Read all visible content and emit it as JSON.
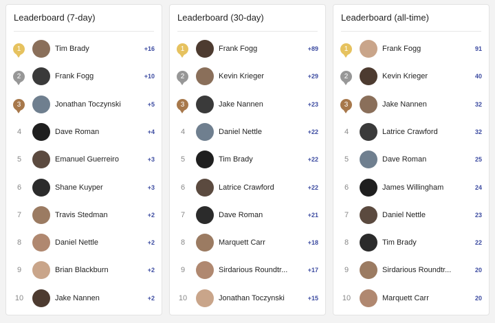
{
  "panels": [
    {
      "title": "Leaderboard (7-day)",
      "rows": [
        {
          "rank": 1,
          "name": "Tim Brady",
          "score": "+16"
        },
        {
          "rank": 2,
          "name": "Frank Fogg",
          "score": "+10"
        },
        {
          "rank": 3,
          "name": "Jonathan Toczynski",
          "score": "+5"
        },
        {
          "rank": 4,
          "name": "Dave Roman",
          "score": "+4"
        },
        {
          "rank": 5,
          "name": "Emanuel Guerreiro",
          "score": "+3"
        },
        {
          "rank": 6,
          "name": "Shane Kuyper",
          "score": "+3"
        },
        {
          "rank": 7,
          "name": "Travis Stedman",
          "score": "+2"
        },
        {
          "rank": 8,
          "name": "Daniel Nettle",
          "score": "+2"
        },
        {
          "rank": 9,
          "name": "Brian Blackburn",
          "score": "+2"
        },
        {
          "rank": 10,
          "name": "Jake Nannen",
          "score": "+2"
        }
      ]
    },
    {
      "title": "Leaderboard (30-day)",
      "rows": [
        {
          "rank": 1,
          "name": "Frank Fogg",
          "score": "+89"
        },
        {
          "rank": 2,
          "name": "Kevin Krieger",
          "score": "+29"
        },
        {
          "rank": 3,
          "name": "Jake Nannen",
          "score": "+23"
        },
        {
          "rank": 4,
          "name": "Daniel Nettle",
          "score": "+22"
        },
        {
          "rank": 5,
          "name": "Tim Brady",
          "score": "+22"
        },
        {
          "rank": 6,
          "name": "Latrice Crawford",
          "score": "+22"
        },
        {
          "rank": 7,
          "name": "Dave Roman",
          "score": "+21"
        },
        {
          "rank": 8,
          "name": "Marquett Carr",
          "score": "+18"
        },
        {
          "rank": 9,
          "name": "Sirdarious Roundtr...",
          "score": "+17"
        },
        {
          "rank": 10,
          "name": "Jonathan Toczynski",
          "score": "+15"
        }
      ]
    },
    {
      "title": "Leaderboard (all-time)",
      "rows": [
        {
          "rank": 1,
          "name": "Frank Fogg",
          "score": 91
        },
        {
          "rank": 2,
          "name": "Kevin Krieger",
          "score": 40
        },
        {
          "rank": 3,
          "name": "Jake Nannen",
          "score": 32
        },
        {
          "rank": 4,
          "name": "Latrice Crawford",
          "score": 32
        },
        {
          "rank": 5,
          "name": "Dave Roman",
          "score": 25
        },
        {
          "rank": 6,
          "name": "James Willingham",
          "score": 24
        },
        {
          "rank": 7,
          "name": "Daniel Nettle",
          "score": 23
        },
        {
          "rank": 8,
          "name": "Tim Brady",
          "score": 22
        },
        {
          "rank": 9,
          "name": "Sirdarious Roundtr...",
          "score": 20
        },
        {
          "rank": 10,
          "name": "Marquett Carr",
          "score": 20
        }
      ]
    }
  ]
}
